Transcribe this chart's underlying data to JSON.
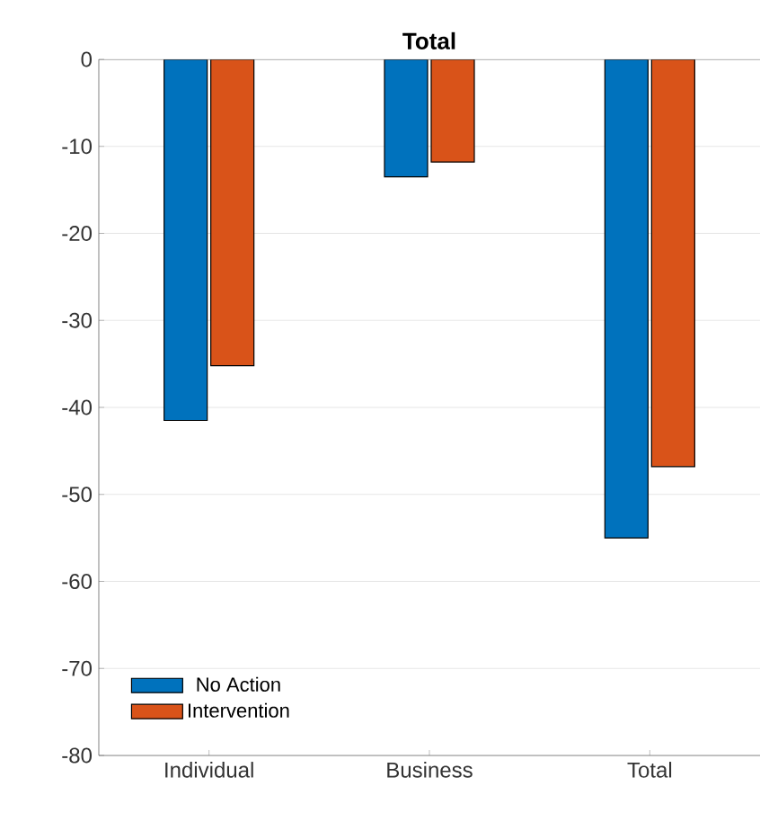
{
  "chart_data": {
    "type": "bar",
    "title": "Total",
    "categories": [
      "Individual",
      "Business",
      "Total"
    ],
    "series": [
      {
        "name": "No Action",
        "color": "#0072bd",
        "values": [
          -41.5,
          -13.5,
          -55.0
        ]
      },
      {
        "name": "Intervention",
        "color": "#d95319",
        "values": [
          -35.2,
          -11.8,
          -46.8
        ]
      }
    ],
    "ylim": [
      -80,
      0
    ],
    "yticks": [
      -80,
      -70,
      -60,
      -50,
      -40,
      -30,
      -20,
      -10,
      0
    ],
    "grid": "y",
    "legend": "bottom left"
  }
}
